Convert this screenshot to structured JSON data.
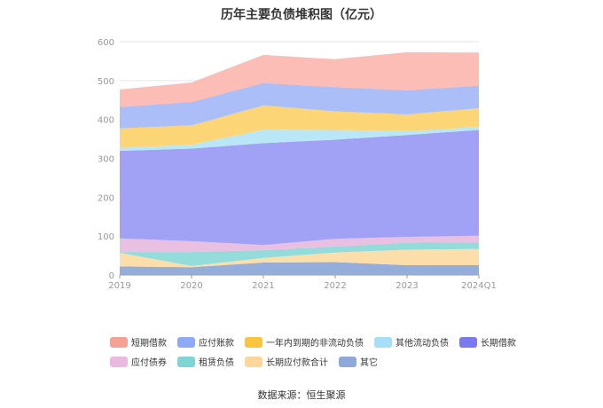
{
  "title": "历年主要负债堆积图（亿元）",
  "source": "数据来源：恒生聚源",
  "chart_data": {
    "type": "area",
    "stacked": true,
    "categories": [
      "2019",
      "2020",
      "2021",
      "2022",
      "2023",
      "2024Q1"
    ],
    "ylim": [
      0,
      600
    ],
    "yticks": [
      "0",
      "100",
      "200",
      "300",
      "400",
      "500",
      "600"
    ],
    "grid": true,
    "legend_position": "bottom",
    "series": [
      {
        "name": "其它",
        "color": "#8fa9d9",
        "values": [
          22,
          20,
          32,
          33,
          25,
          25
        ]
      },
      {
        "name": "长期应付款合计",
        "color": "#fbdca5",
        "values": [
          35,
          3,
          12,
          25,
          40,
          42
        ]
      },
      {
        "name": "租赁负债",
        "color": "#8ed9d9",
        "values": [
          2,
          36,
          20,
          15,
          18,
          17
        ]
      },
      {
        "name": "应付债券",
        "color": "#e8bde0",
        "values": [
          35,
          28,
          13,
          20,
          15,
          17
        ]
      },
      {
        "name": "长期借款",
        "color": "#9c9cf6",
        "values": [
          225,
          238,
          262,
          255,
          262,
          272
        ]
      },
      {
        "name": "其他流动负债",
        "color": "#b5e6f8",
        "values": [
          8,
          10,
          35,
          25,
          10,
          8
        ]
      },
      {
        "name": "一年内到期的非流动负债",
        "color": "#fcd36f",
        "values": [
          50,
          50,
          62,
          48,
          43,
          48
        ]
      },
      {
        "name": "应付账款",
        "color": "#a6baf7",
        "values": [
          55,
          60,
          58,
          62,
          62,
          58
        ]
      },
      {
        "name": "短期借款",
        "color": "#fbb9b2",
        "values": [
          45,
          50,
          72,
          72,
          98,
          85
        ]
      }
    ]
  },
  "legend": {
    "row1": [
      {
        "label": "短期借款",
        "color": "#f5a196"
      },
      {
        "label": "应付账款",
        "color": "#8eaaf5"
      },
      {
        "label": "一年内到期的非流动负债",
        "color": "#fbc43d"
      },
      {
        "label": "其他流动负债",
        "color": "#a5def7"
      },
      {
        "label": "长期借款",
        "color": "#7b79ee"
      }
    ],
    "row2": [
      {
        "label": "应付债券",
        "color": "#e9b9df"
      },
      {
        "label": "租赁负债",
        "color": "#7fd5d4"
      },
      {
        "label": "长期应付款合计",
        "color": "#fbd79a"
      },
      {
        "label": "其它",
        "color": "#8ea8db"
      }
    ]
  }
}
